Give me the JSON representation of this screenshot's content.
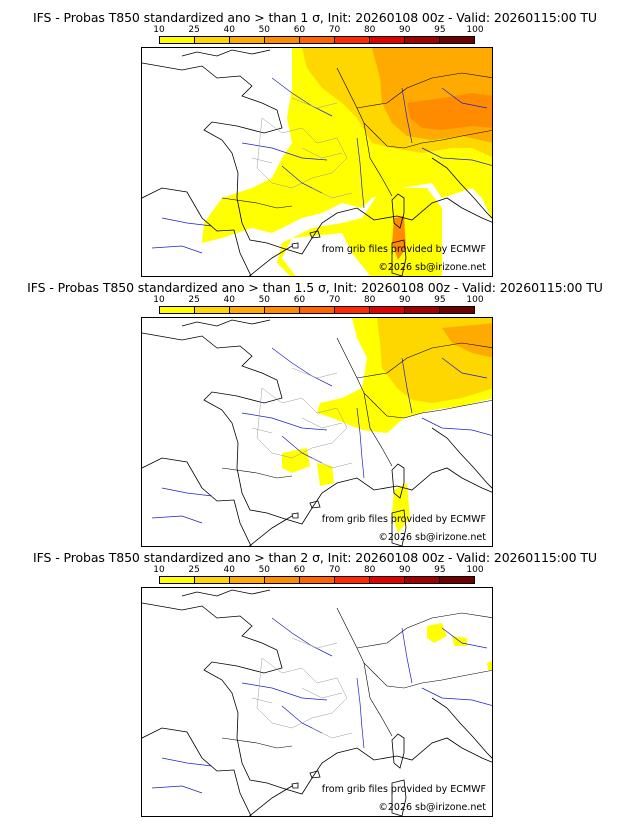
{
  "panels": [
    {
      "title": "IFS - Probas T850  standardized ano > than 1 σ, Init: 20260108 00z - Valid: 20260115:00 TU",
      "coverage": "high"
    },
    {
      "title": "IFS - Probas T850  standardized ano > than 1.5 σ, Init: 20260108 00z - Valid: 20260115:00 TU",
      "coverage": "medium"
    },
    {
      "title": "IFS - Probas T850  standardized ano > than 2 σ, Init: 20260108 00z - Valid: 20260115:00 TU",
      "coverage": "low"
    }
  ],
  "colorbar": {
    "ticks": [
      "10",
      "25",
      "40",
      "50",
      "60",
      "70",
      "80",
      "90",
      "95",
      "100"
    ],
    "colors": [
      "#ffff00",
      "#ffd700",
      "#ffaa00",
      "#ff8c00",
      "#ff6400",
      "#ff2800",
      "#e00000",
      "#a00000",
      "#6e0000"
    ]
  },
  "credit": {
    "source": "from grib files provided by ECMWF",
    "copyright": "©2026 sb@irizone.net"
  },
  "colors": {
    "land_border": "#000000",
    "river": "#2020cc",
    "region": "#999999"
  }
}
